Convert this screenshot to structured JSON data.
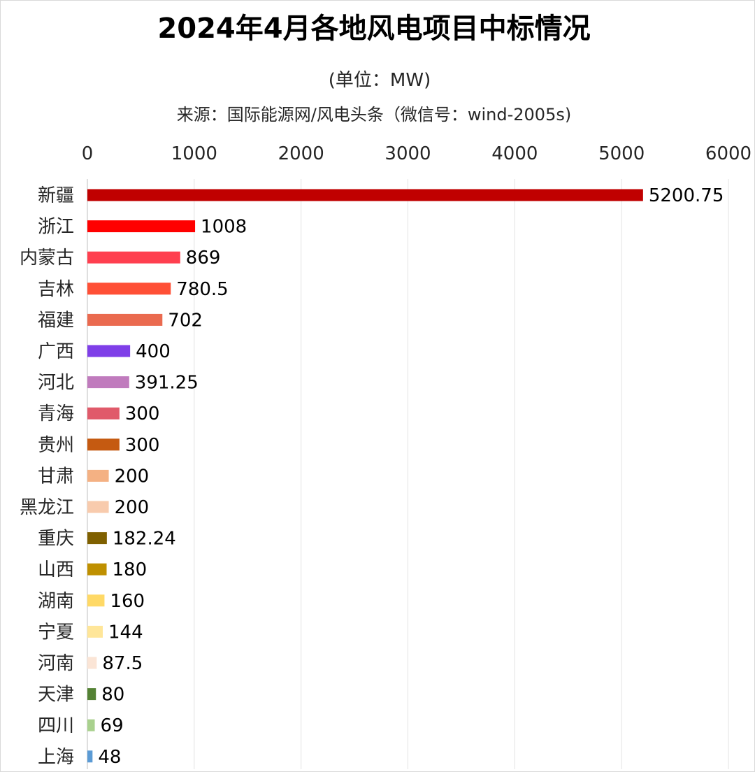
{
  "chart_data": {
    "type": "bar",
    "orientation": "horizontal",
    "title": "2024年4月各地风电项目中标情况",
    "unit": "(单位：MW)",
    "source": "来源：国际能源网/风电头条（微信号：wind-2005s)",
    "categories": [
      "新疆",
      "浙江",
      "内蒙古",
      "吉林",
      "福建",
      "广西",
      "河北",
      "青海",
      "贵州",
      "甘肃",
      "黑龙江",
      "重庆",
      "山西",
      "湖南",
      "宁夏",
      "河南",
      "天津",
      "四川",
      "上海"
    ],
    "values": [
      5200.75,
      1008,
      869,
      780.5,
      702,
      400,
      391.25,
      300,
      300,
      200,
      200,
      182.24,
      180,
      160,
      144,
      87.5,
      80,
      69,
      48
    ],
    "value_labels": [
      "5200.75",
      "1008",
      "869",
      "780.5",
      "702",
      "400",
      "391.25",
      "300",
      "300",
      "200",
      "200",
      "182.24",
      "180",
      "160",
      "144",
      "87.5",
      "80",
      "69",
      "48"
    ],
    "colors": [
      "#c00000",
      "#ff0000",
      "#ff3f4f",
      "#ff5036",
      "#ea6a4f",
      "#7f3fe8",
      "#c07bbd",
      "#e05a6a",
      "#c55a11",
      "#f4b183",
      "#f8cbad",
      "#7f6000",
      "#bf9000",
      "#ffd966",
      "#ffe699",
      "#fbe5d6",
      "#548235",
      "#a9d18e",
      "#5b9bd5"
    ],
    "xlim": [
      0,
      6000
    ],
    "xticks": [
      "0",
      "1000",
      "2000",
      "3000",
      "4000",
      "5000",
      "6000"
    ],
    "xaxis_position": "top",
    "grid": true,
    "legend": "none"
  }
}
